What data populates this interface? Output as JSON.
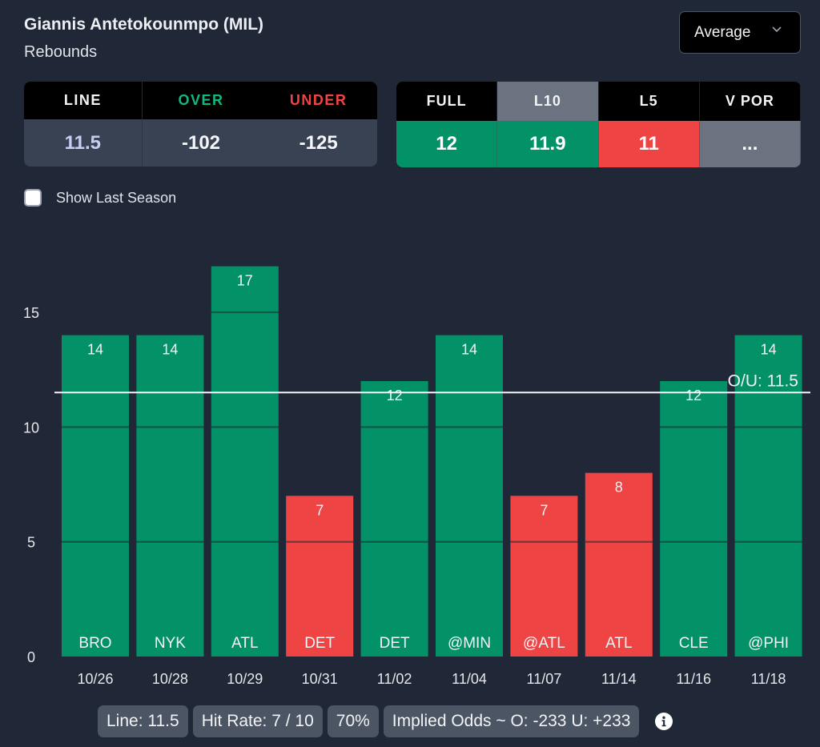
{
  "header": {
    "player": "Giannis Antetokounmpo (MIL)",
    "stat": "Rebounds"
  },
  "dropdown": {
    "selected": "Average",
    "icon": "chevron-down-icon"
  },
  "line_table": {
    "headers": [
      "LINE",
      "OVER",
      "UNDER"
    ],
    "values": [
      "11.5",
      "-102",
      "-125"
    ],
    "header_colors": [
      "#f3f4f6",
      "#10b981",
      "#ef4444"
    ]
  },
  "avg_table": {
    "headers": [
      "FULL",
      "L10",
      "L5",
      "V POR"
    ],
    "values": [
      "12",
      "11.9",
      "11",
      "..."
    ],
    "active_index": 1,
    "cell_colors": [
      "#039267",
      "#039267",
      "#ef4444",
      "#6b7280"
    ]
  },
  "show_last_season": {
    "label": "Show Last Season",
    "checked": false
  },
  "colors": {
    "over": "#039267",
    "under": "#ef4444",
    "background": "#202838"
  },
  "chart_data": {
    "type": "bar",
    "title": "",
    "xlabel": "",
    "ylabel": "",
    "categories": [
      "10/26",
      "10/28",
      "10/29",
      "10/31",
      "11/02",
      "11/04",
      "11/07",
      "11/14",
      "11/16",
      "11/18"
    ],
    "opponents": [
      "BRO",
      "NYK",
      "ATL",
      "DET",
      "DET",
      "@MIN",
      "@ATL",
      "ATL",
      "CLE",
      "@PHI"
    ],
    "values": [
      14,
      14,
      17,
      7,
      12,
      14,
      7,
      8,
      12,
      14
    ],
    "ylim": [
      0,
      17
    ],
    "yticks": [
      0,
      5,
      10,
      15
    ],
    "grid": true,
    "reference_line": {
      "value": 11.5,
      "label": "O/U: 11.5"
    },
    "legend": "none"
  },
  "footer": {
    "line": "Line: 11.5",
    "hit_rate": "Hit Rate: 7 / 10",
    "percent": "70%",
    "implied_odds": "Implied Odds ~ O: -233 U: +233",
    "info_icon": "info-icon"
  }
}
